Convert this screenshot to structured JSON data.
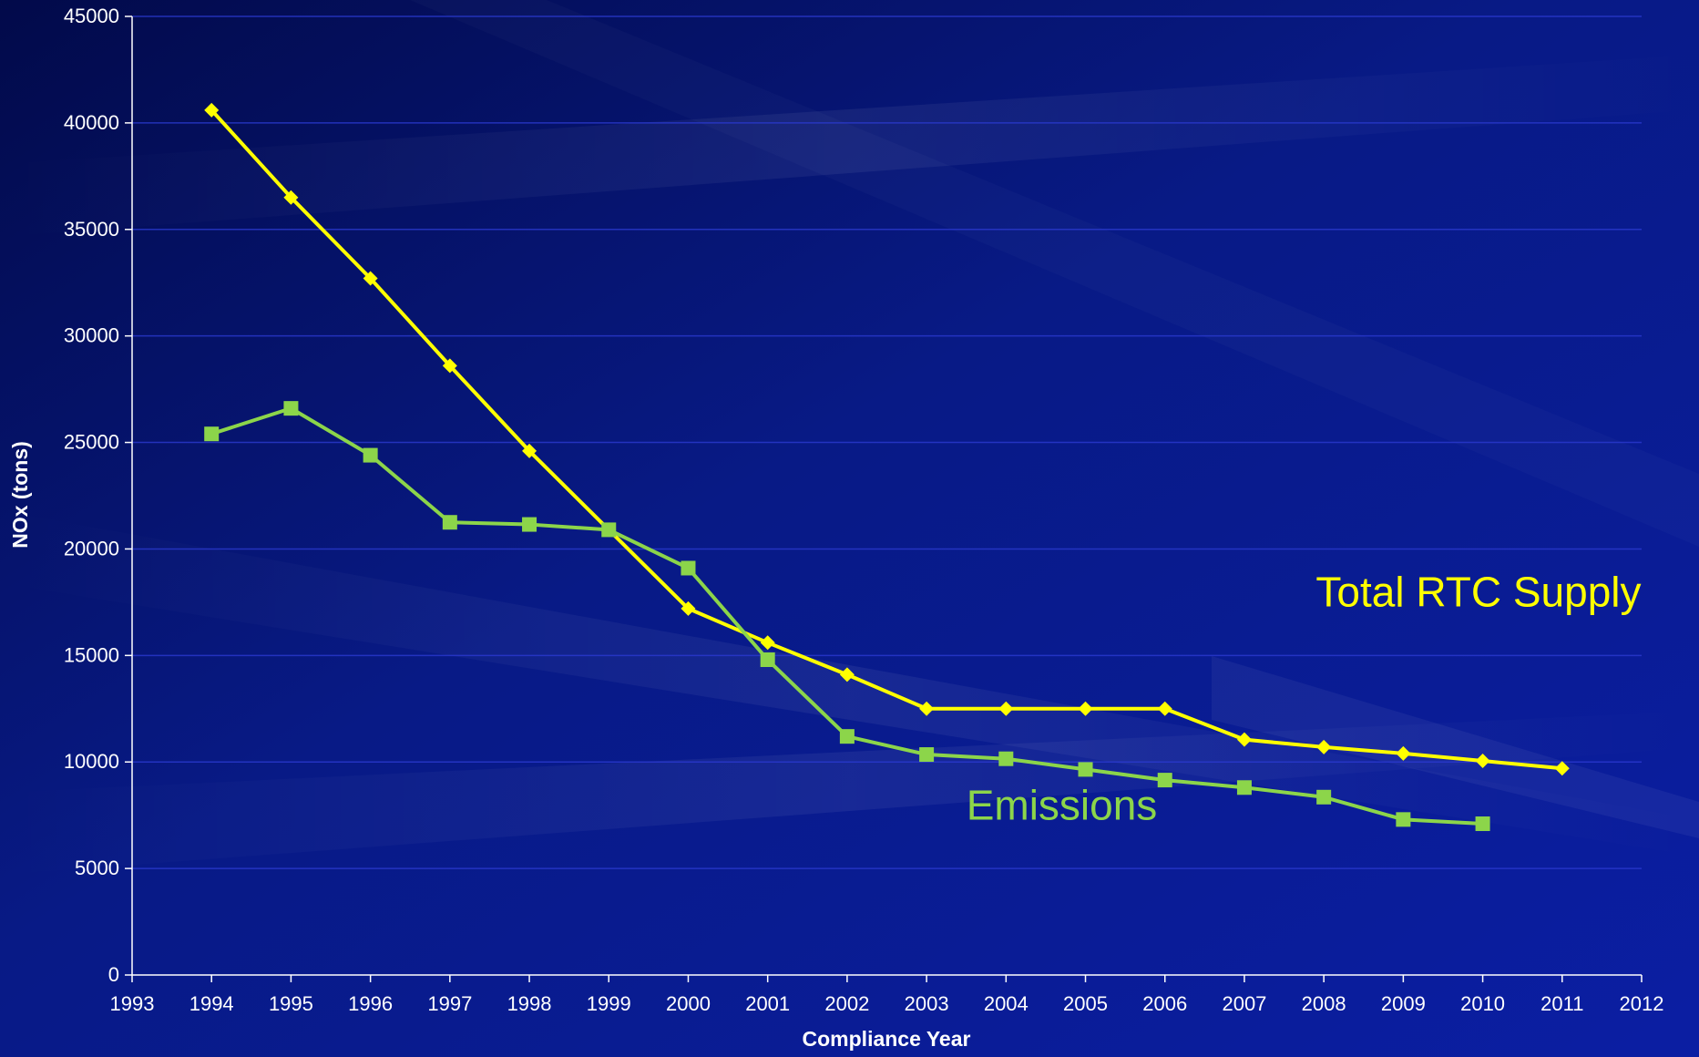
{
  "chart_data": {
    "type": "line",
    "title": "",
    "xlabel": "Compliance Year",
    "ylabel": "NOx (tons)",
    "xlim": [
      1993,
      2012
    ],
    "ylim": [
      0,
      45000
    ],
    "xticks": [
      "1993",
      "1994",
      "1995",
      "1996",
      "1997",
      "1998",
      "1999",
      "2000",
      "2001",
      "2002",
      "2003",
      "2004",
      "2005",
      "2006",
      "2007",
      "2008",
      "2009",
      "2010",
      "2011",
      "2012"
    ],
    "yticks": [
      "0",
      "5000",
      "10000",
      "15000",
      "20000",
      "25000",
      "30000",
      "35000",
      "40000",
      "45000"
    ],
    "grid": true,
    "series": [
      {
        "name": "Total RTC Supply",
        "color": "#ffff00",
        "marker": "diamond",
        "x": [
          1994,
          1995,
          1996,
          1997,
          1998,
          1999,
          2000,
          2001,
          2002,
          2003,
          2004,
          2005,
          2006,
          2007,
          2008,
          2009,
          2010,
          2011
        ],
        "values": [
          40600,
          36500,
          32700,
          28600,
          24600,
          20900,
          17200,
          15600,
          14100,
          12500,
          12500,
          12500,
          12500,
          11050,
          10700,
          10400,
          10050,
          9700
        ]
      },
      {
        "name": "Emissions",
        "color": "#8cd54a",
        "marker": "square",
        "x": [
          1994,
          1995,
          1996,
          1997,
          1998,
          1999,
          2000,
          2001,
          2002,
          2003,
          2004,
          2005,
          2006,
          2007,
          2008,
          2009,
          2010
        ],
        "values": [
          25400,
          26600,
          24400,
          21250,
          21150,
          20900,
          19100,
          14800,
          11200,
          10350,
          10150,
          9650,
          9150,
          8800,
          8350,
          7300,
          7100
        ]
      }
    ],
    "annotations": [
      {
        "text": "Total RTC Supply",
        "x": 2007.9,
        "y": 17300,
        "color": "#ffff00"
      },
      {
        "text": "Emissions",
        "x": 2003.5,
        "y": 7300,
        "color": "#8cd54a"
      }
    ]
  }
}
